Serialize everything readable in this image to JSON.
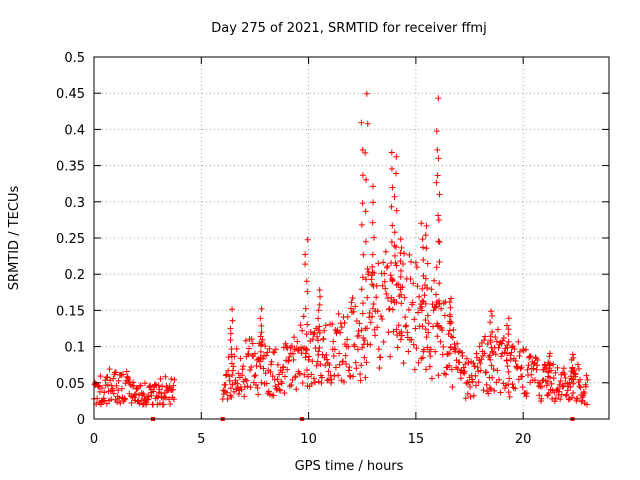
{
  "chart_data": {
    "type": "scatter",
    "title": "Day 275 of 2021, SRMTID for receiver ffmj",
    "xlabel": "GPS time / hours",
    "ylabel": "SRMTID / TECUs",
    "xlim": [
      0,
      24
    ],
    "ylim": [
      0,
      0.5
    ],
    "grid": true,
    "marker": "+",
    "color": "#ff0000",
    "xticks": [
      0,
      5,
      10,
      15,
      20
    ],
    "xtick_labels": [
      "0",
      "5",
      "10",
      "15",
      "20"
    ],
    "yticks": [
      0,
      0.05,
      0.1,
      0.15,
      0.2,
      0.25,
      0.3,
      0.35,
      0.4,
      0.45,
      0.5
    ],
    "ytick_labels": [
      "0",
      "0.05",
      "0.1",
      "0.15",
      "0.2",
      "0.25",
      "0.3",
      "0.35",
      "0.4",
      "0.45",
      "0.5"
    ],
    "zero_markers_x": [
      2.75,
      6.0,
      9.7,
      22.3
    ],
    "series": [
      {
        "name": "SRMTID",
        "envelope": [
          [
            0.0,
            0.035
          ],
          [
            0.25,
            0.04
          ],
          [
            0.5,
            0.04
          ],
          [
            0.75,
            0.045
          ],
          [
            1.0,
            0.042
          ],
          [
            1.25,
            0.04
          ],
          [
            1.5,
            0.045
          ],
          [
            1.75,
            0.038
          ],
          [
            2.0,
            0.035
          ],
          [
            2.25,
            0.035
          ],
          [
            2.5,
            0.032
          ],
          [
            2.75,
            0.03
          ],
          [
            3.0,
            0.033
          ],
          [
            3.25,
            0.04
          ],
          [
            3.5,
            0.04
          ],
          [
            3.75,
            0.035
          ],
          [
            6.0,
            0.03
          ],
          [
            6.25,
            0.055
          ],
          [
            6.5,
            0.07
          ],
          [
            6.75,
            0.06
          ],
          [
            7.0,
            0.065
          ],
          [
            7.25,
            0.085
          ],
          [
            7.5,
            0.065
          ],
          [
            7.75,
            0.07
          ],
          [
            8.0,
            0.075
          ],
          [
            8.25,
            0.06
          ],
          [
            8.5,
            0.07
          ],
          [
            8.75,
            0.065
          ],
          [
            9.0,
            0.08
          ],
          [
            9.25,
            0.085
          ],
          [
            9.5,
            0.075
          ],
          [
            9.75,
            0.1
          ],
          [
            10.0,
            0.09
          ],
          [
            10.25,
            0.08
          ],
          [
            10.5,
            0.09
          ],
          [
            10.75,
            0.085
          ],
          [
            11.0,
            0.1
          ],
          [
            11.25,
            0.095
          ],
          [
            11.5,
            0.1
          ],
          [
            11.75,
            0.105
          ],
          [
            12.0,
            0.11
          ],
          [
            12.25,
            0.1
          ],
          [
            12.5,
            0.12
          ],
          [
            12.75,
            0.13
          ],
          [
            13.0,
            0.14
          ],
          [
            13.25,
            0.15
          ],
          [
            13.5,
            0.16
          ],
          [
            13.75,
            0.17
          ],
          [
            14.0,
            0.165
          ],
          [
            14.25,
            0.16
          ],
          [
            14.5,
            0.15
          ],
          [
            14.75,
            0.15
          ],
          [
            15.0,
            0.14
          ],
          [
            15.25,
            0.13
          ],
          [
            15.5,
            0.125
          ],
          [
            15.75,
            0.12
          ],
          [
            16.0,
            0.13
          ],
          [
            16.25,
            0.11
          ],
          [
            16.5,
            0.1
          ],
          [
            16.75,
            0.08
          ],
          [
            17.0,
            0.065
          ],
          [
            17.25,
            0.06
          ],
          [
            17.5,
            0.055
          ],
          [
            17.75,
            0.06
          ],
          [
            18.0,
            0.07
          ],
          [
            18.25,
            0.075
          ],
          [
            18.5,
            0.08
          ],
          [
            18.75,
            0.085
          ],
          [
            19.0,
            0.075
          ],
          [
            19.25,
            0.07
          ],
          [
            19.5,
            0.065
          ],
          [
            19.75,
            0.07
          ],
          [
            20.0,
            0.065
          ],
          [
            20.25,
            0.06
          ],
          [
            20.5,
            0.055
          ],
          [
            20.75,
            0.055
          ],
          [
            21.0,
            0.05
          ],
          [
            21.25,
            0.05
          ],
          [
            21.5,
            0.055
          ],
          [
            21.75,
            0.05
          ],
          [
            22.0,
            0.045
          ],
          [
            22.25,
            0.045
          ],
          [
            22.5,
            0.05
          ],
          [
            22.75,
            0.045
          ],
          [
            23.0,
            0.04
          ]
        ],
        "peaks": [
          [
            6.4,
            0.15
          ],
          [
            7.8,
            0.15
          ],
          [
            9.9,
            0.25
          ],
          [
            10.5,
            0.18
          ],
          [
            12.5,
            0.41
          ],
          [
            12.7,
            0.45
          ],
          [
            13.0,
            0.32
          ],
          [
            13.9,
            0.37
          ],
          [
            14.05,
            0.36
          ],
          [
            14.3,
            0.25
          ],
          [
            15.3,
            0.27
          ],
          [
            15.5,
            0.27
          ],
          [
            16.0,
            0.44
          ],
          [
            16.05,
            0.37
          ],
          [
            16.6,
            0.17
          ],
          [
            18.5,
            0.15
          ],
          [
            19.3,
            0.14
          ],
          [
            21.2,
            0.09
          ],
          [
            22.3,
            0.09
          ]
        ]
      }
    ]
  }
}
